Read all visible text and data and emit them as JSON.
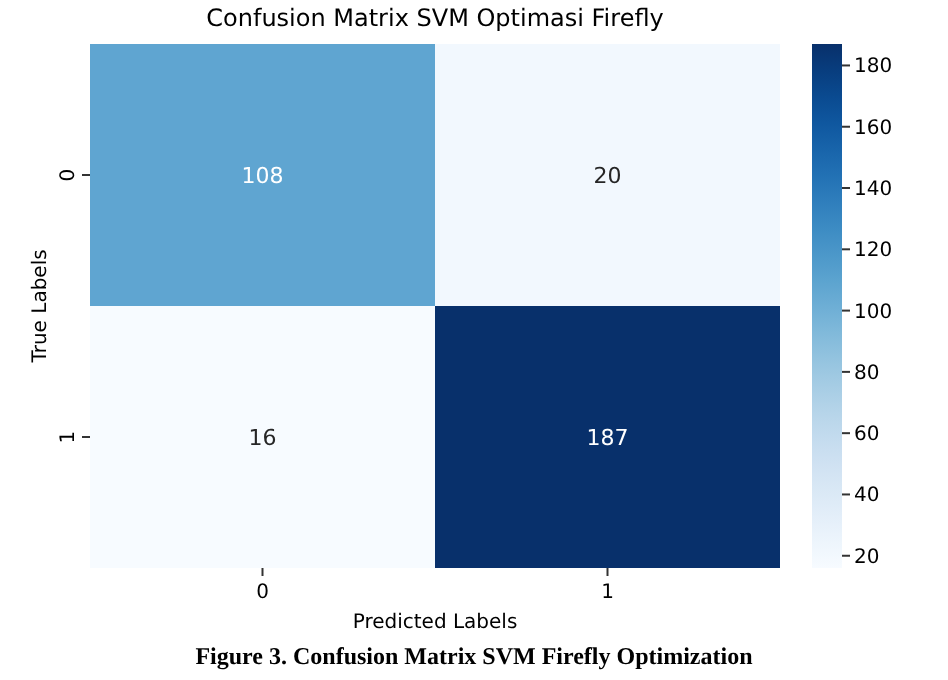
{
  "chart_data": {
    "type": "heatmap",
    "title": "Confusion Matrix SVM Optimasi Firefly",
    "xlabel": "Predicted Labels",
    "ylabel": "True Labels",
    "categories": [
      "0",
      "1"
    ],
    "y_categories": [
      "0",
      "1"
    ],
    "cells": [
      [
        108,
        20
      ],
      [
        16,
        187
      ]
    ],
    "data_labels": true,
    "clim": [
      16,
      187
    ],
    "cticks": [
      20,
      40,
      60,
      80,
      100,
      120,
      140,
      160,
      180
    ],
    "annotations": [
      "Figure 3. Confusion Matrix SVM Firefly Optimization"
    ]
  }
}
